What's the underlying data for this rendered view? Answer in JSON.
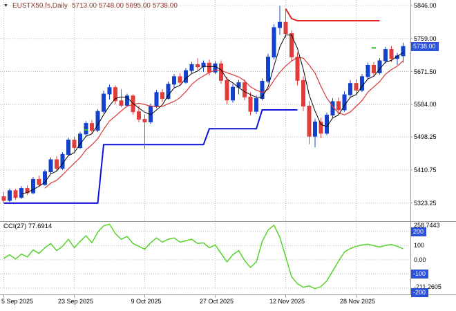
{
  "title_bar": {
    "symbol_period": "EUSTX50.fs,Daily",
    "quote_text": "5713.00 5748.00 5695.00 5738.00"
  },
  "colors": {
    "background": "#ffffff",
    "grid": "#bdbdbd",
    "axis_line": "#9b9b9b",
    "bull": "#1241cc",
    "bear": "#e03c3c",
    "ma_fast": "#000000",
    "ma_slow": "#d93636",
    "step_line": "#0f0fd8",
    "flat_line": "#e02828",
    "indicator_line": "#56d22b",
    "marker": "#2db82d",
    "price_tag_bg": "#2b50d9",
    "title_text": "#8f3b31"
  },
  "chart_data": {
    "type": "candlestick",
    "symbol": "EUSTX50.fs",
    "timeframe": "Daily",
    "quote": {
      "open": "5713.00",
      "high": "5748.00",
      "low": "5695.00",
      "close": "5738.00"
    },
    "price_axis": {
      "view_max": 5861,
      "view_min": 5277,
      "labels": [
        {
          "text": "5846.00",
          "p": 5846
        },
        {
          "text": "5759.00",
          "p": 5759
        },
        {
          "text": "5671.50",
          "p": 5671.5
        },
        {
          "text": "5584.00",
          "p": 5584
        },
        {
          "text": "5498.25",
          "p": 5498.25
        },
        {
          "text": "5410.75",
          "p": 5410.75
        },
        {
          "text": "5323.25",
          "p": 5323.25
        }
      ],
      "current": {
        "text": "5738.00",
        "p": 5738
      }
    },
    "time_axis": [
      {
        "text": "5 Sep 2025",
        "i": 0
      },
      {
        "text": "23 Sep 2025",
        "i": 12
      },
      {
        "text": "9 Oct 2025",
        "i": 24
      },
      {
        "text": "27 Oct 2025",
        "i": 36
      },
      {
        "text": "12 Nov 2025",
        "i": 48
      },
      {
        "text": "28 Nov 2025",
        "i": 60
      }
    ],
    "candles": [
      [
        5340,
        5352,
        5322,
        5330
      ],
      [
        5330,
        5362,
        5326,
        5356
      ],
      [
        5356,
        5361,
        5332,
        5338
      ],
      [
        5338,
        5368,
        5334,
        5362
      ],
      [
        5362,
        5370,
        5344,
        5350
      ],
      [
        5350,
        5392,
        5347,
        5386
      ],
      [
        5386,
        5396,
        5366,
        5372
      ],
      [
        5372,
        5412,
        5369,
        5406
      ],
      [
        5406,
        5444,
        5401,
        5438
      ],
      [
        5438,
        5447,
        5408,
        5415
      ],
      [
        5415,
        5458,
        5411,
        5452
      ],
      [
        5452,
        5496,
        5449,
        5490
      ],
      [
        5490,
        5499,
        5461,
        5470
      ],
      [
        5470,
        5512,
        5466,
        5506
      ],
      [
        5506,
        5540,
        5501,
        5534
      ],
      [
        5534,
        5543,
        5507,
        5516
      ],
      [
        5516,
        5572,
        5511,
        5566
      ],
      [
        5566,
        5621,
        5561,
        5612
      ],
      [
        5612,
        5637,
        5597,
        5629
      ],
      [
        5629,
        5635,
        5585,
        5594
      ],
      [
        5594,
        5625,
        5577,
        5582
      ],
      [
        5582,
        5613,
        5578,
        5607
      ],
      [
        5607,
        5611,
        5557,
        5565
      ],
      [
        5565,
        5581,
        5537,
        5545
      ],
      [
        5545,
        5557,
        5467,
        5538
      ],
      [
        5538,
        5587,
        5533,
        5580
      ],
      [
        5580,
        5623,
        5575,
        5616
      ],
      [
        5616,
        5625,
        5591,
        5600
      ],
      [
        5600,
        5645,
        5597,
        5638
      ],
      [
        5638,
        5665,
        5629,
        5658
      ],
      [
        5658,
        5667,
        5635,
        5643
      ],
      [
        5643,
        5681,
        5639,
        5674
      ],
      [
        5674,
        5697,
        5667,
        5690
      ],
      [
        5690,
        5707,
        5675,
        5684
      ],
      [
        5684,
        5701,
        5671,
        5694
      ],
      [
        5694,
        5703,
        5661,
        5670
      ],
      [
        5670,
        5699,
        5665,
        5692
      ],
      [
        5692,
        5701,
        5639,
        5648
      ],
      [
        5648,
        5657,
        5585,
        5596
      ],
      [
        5596,
        5639,
        5589,
        5630
      ],
      [
        5630,
        5649,
        5611,
        5642
      ],
      [
        5642,
        5651,
        5595,
        5604
      ],
      [
        5604,
        5617,
        5555,
        5566
      ],
      [
        5566,
        5609,
        5559,
        5600
      ],
      [
        5600,
        5653,
        5595,
        5646
      ],
      [
        5646,
        5719,
        5641,
        5710
      ],
      [
        5710,
        5797,
        5703,
        5788
      ],
      [
        5788,
        5846,
        5769,
        5802
      ],
      [
        5802,
        5837,
        5761,
        5772
      ],
      [
        5772,
        5781,
        5699,
        5710
      ],
      [
        5710,
        5723,
        5635,
        5648
      ],
      [
        5648,
        5659,
        5567,
        5580
      ],
      [
        5580,
        5593,
        5479,
        5500
      ],
      [
        5500,
        5547,
        5471,
        5538
      ],
      [
        5538,
        5549,
        5495,
        5508
      ],
      [
        5508,
        5563,
        5503,
        5556
      ],
      [
        5556,
        5601,
        5549,
        5592
      ],
      [
        5592,
        5603,
        5559,
        5570
      ],
      [
        5570,
        5619,
        5565,
        5610
      ],
      [
        5610,
        5649,
        5603,
        5640
      ],
      [
        5640,
        5651,
        5613,
        5622
      ],
      [
        5622,
        5665,
        5617,
        5658
      ],
      [
        5658,
        5695,
        5651,
        5688
      ],
      [
        5688,
        5697,
        5659,
        5668
      ],
      [
        5668,
        5707,
        5663,
        5700
      ],
      [
        5700,
        5737,
        5693,
        5730
      ],
      [
        5730,
        5739,
        5697,
        5706
      ],
      [
        5706,
        5721,
        5689,
        5713
      ],
      [
        5713,
        5748,
        5695,
        5738
      ]
    ],
    "overlays": {
      "ma_fast_period": 4,
      "ma_slow_period": 8,
      "step_line": [
        [
          0,
          5323
        ],
        [
          16,
          5323
        ],
        [
          17,
          5478
        ],
        [
          34,
          5478
        ],
        [
          35,
          5520
        ],
        [
          43,
          5520
        ],
        [
          44,
          5570
        ],
        [
          50,
          5570
        ]
      ],
      "flat_line": [
        [
          48,
          5838
        ],
        [
          49,
          5812
        ],
        [
          50,
          5806
        ],
        [
          64,
          5806
        ]
      ],
      "markers": [
        [
          14,
          5517
        ],
        [
          63,
          5734
        ]
      ]
    },
    "indicator": {
      "name": "CCI",
      "period": 27,
      "label": "CCI(27) 77.6914",
      "value": 77.6914,
      "axis": {
        "max": 258.7443,
        "min": -211.2605,
        "levels": [
          200,
          100,
          0,
          -100,
          -200
        ],
        "labels": [
          {
            "text": "258.7443",
            "v": 258.7443,
            "box": false,
            "shift": 3
          },
          {
            "text": "200",
            "v": 200,
            "box": true
          },
          {
            "text": "100",
            "v": 100,
            "box": false
          },
          {
            "text": "0.00",
            "v": 0,
            "box": false
          },
          {
            "text": "-100",
            "v": -100,
            "box": true
          },
          {
            "text": "-211.2605",
            "v": -211.2605,
            "box": false,
            "shift": -4
          },
          {
            "text": "-200",
            "v": -200,
            "box": true,
            "bottom_clip": true
          }
        ]
      },
      "values": [
        10,
        35,
        5,
        40,
        20,
        70,
        45,
        85,
        115,
        65,
        95,
        145,
        85,
        130,
        170,
        120,
        195,
        240,
        252,
        185,
        145,
        165,
        115,
        95,
        75,
        120,
        155,
        125,
        145,
        155,
        125,
        135,
        145,
        115,
        120,
        85,
        105,
        45,
        -15,
        35,
        65,
        -5,
        -55,
        -15,
        130,
        210,
        245,
        160,
        20,
        -120,
        -170,
        -195,
        -185,
        -205,
        -190,
        -150,
        -80,
        -10,
        55,
        80,
        95,
        105,
        110,
        100,
        90,
        102,
        108,
        95,
        77.69
      ]
    }
  }
}
